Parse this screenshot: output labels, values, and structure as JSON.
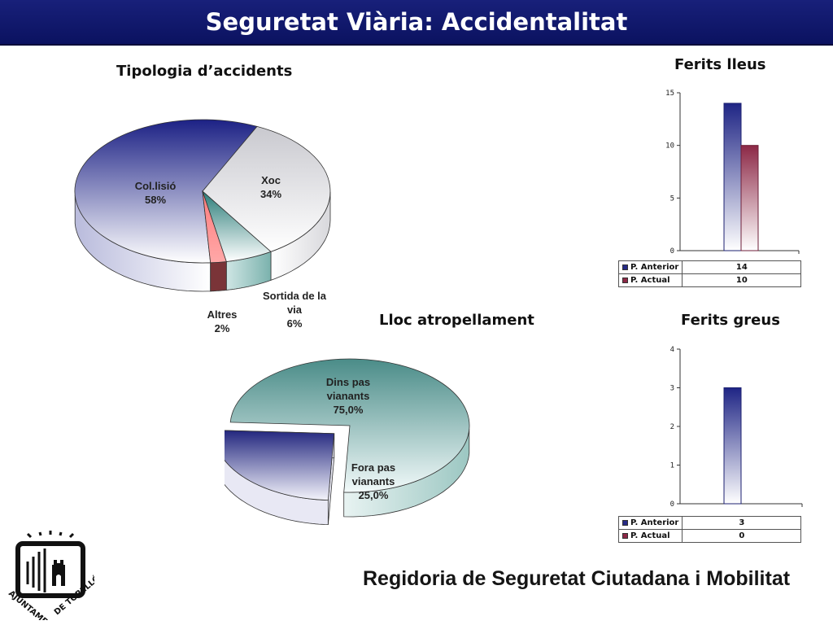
{
  "header": {
    "title": "Seguretat Viària: Accidentalitat"
  },
  "footer": {
    "text": "Regidoria de Seguretat Ciutadana i Mobilitat"
  },
  "logo": {
    "line1": "AJUNTAMENT",
    "line2": "DE TORELLÓ"
  },
  "colors": {
    "banner": "#13196e",
    "anterior": "#262a86",
    "actual": "#8c2846",
    "teal": "#2e7d7a"
  },
  "chart_data": [
    {
      "id": "tipologia",
      "type": "pie",
      "title": "Tipologia d’accidents",
      "slices": [
        {
          "label": [
            "Col.lisió",
            "58%"
          ],
          "value": 58
        },
        {
          "label": [
            "Xoc",
            "34%"
          ],
          "value": 34
        },
        {
          "label": [
            "Sortida de la",
            "via",
            "6%"
          ],
          "value": 6
        },
        {
          "label": [
            "Altres",
            "2%"
          ],
          "value": 2
        }
      ]
    },
    {
      "id": "atropellament",
      "type": "pie",
      "title": "Lloc atropellament",
      "slices": [
        {
          "label": [
            "Dins pas",
            "vianants",
            "75,0%"
          ],
          "value": 75.0
        },
        {
          "label": [
            "Fora pas",
            "vianants",
            "25,0%"
          ],
          "value": 25.0
        }
      ]
    },
    {
      "id": "ferits-lleus",
      "type": "bar",
      "title": "Ferits lleus",
      "ylim": [
        0,
        15
      ],
      "yticks": [
        0,
        5,
        10,
        15
      ],
      "series": [
        {
          "name": "P. Anterior",
          "values": [
            14
          ],
          "display": "14"
        },
        {
          "name": "P. Actual",
          "values": [
            10
          ],
          "display": "10"
        }
      ]
    },
    {
      "id": "ferits-greus",
      "type": "bar",
      "title": "Ferits greus",
      "ylim": [
        0,
        4
      ],
      "yticks": [
        0,
        1,
        2,
        3,
        4
      ],
      "series": [
        {
          "name": "P. Anterior",
          "values": [
            3
          ],
          "display": "3"
        },
        {
          "name": "P. Actual",
          "values": [
            0
          ],
          "display": "0"
        }
      ]
    }
  ]
}
